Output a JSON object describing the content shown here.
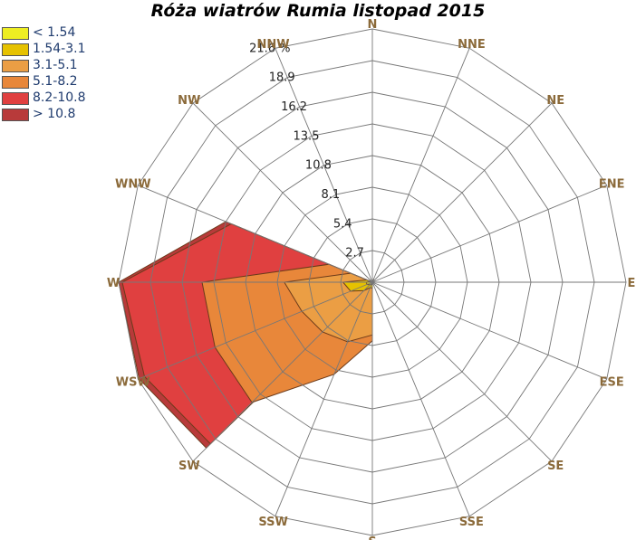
{
  "chart_data": {
    "type": "radar",
    "title": "Róża wiatrów Rumia listopad 2015",
    "directions": [
      "N",
      "NNE",
      "NE",
      "ENE",
      "E",
      "ESE",
      "SE",
      "SSE",
      "S",
      "SSW",
      "SW",
      "WSW",
      "W",
      "WNW",
      "NW",
      "NNW"
    ],
    "ring_labels": [
      "2.7",
      "5.4",
      "8.1",
      "10.8",
      "13.5",
      "16.2",
      "18.9",
      "21.6 %"
    ],
    "rmax": 21.6,
    "legend_placement": "top-left",
    "series": [
      {
        "name": "> 10.8",
        "color": "#b83a3a",
        "values": [
          0.0,
          0.0,
          0.0,
          0.0,
          0.0,
          0.0,
          0.0,
          0.0,
          0.5,
          0.5,
          20.0,
          21.5,
          21.6,
          13.5,
          0.0,
          0.0
        ]
      },
      {
        "name": "8.2-10.8",
        "color": "#e04040",
        "values": [
          0.0,
          0.0,
          0.0,
          0.0,
          1.0,
          0.0,
          0.0,
          0.0,
          0.5,
          0.5,
          19.5,
          21.0,
          21.3,
          13.0,
          0.0,
          0.0
        ]
      },
      {
        "name": "5.1-8.2",
        "color": "#e8873a",
        "values": [
          0.0,
          0.3,
          0.0,
          0.0,
          1.5,
          0.0,
          0.0,
          0.0,
          5.0,
          8.5,
          14.5,
          14.5,
          14.5,
          4.0,
          0.0,
          0.0
        ]
      },
      {
        "name": "3.1-5.1",
        "color": "#eb9e44",
        "values": [
          0.0,
          0.0,
          0.0,
          0.0,
          0.5,
          0.0,
          0.0,
          0.0,
          4.5,
          5.5,
          6.0,
          6.5,
          7.5,
          2.0,
          0.0,
          0.0
        ]
      },
      {
        "name": "1.54-3.1",
        "color": "#e6c200",
        "values": [
          0.0,
          0.0,
          0.0,
          0.0,
          0.5,
          0.0,
          0.0,
          0.0,
          0.5,
          0.5,
          1.0,
          2.0,
          2.5,
          0.5,
          0.0,
          0.0
        ]
      },
      {
        "name": "< 1.54",
        "color": "#eeee22",
        "values": [
          0.0,
          0.0,
          0.0,
          0.0,
          0.2,
          0.0,
          0.0,
          0.0,
          0.2,
          0.2,
          0.3,
          0.5,
          0.5,
          0.2,
          0.0,
          0.0
        ]
      }
    ],
    "legend": [
      {
        "label": "< 1.54",
        "color": "#eeee22"
      },
      {
        "label": "1.54-3.1",
        "color": "#e6c200"
      },
      {
        "label": "3.1-5.1",
        "color": "#eb9e44"
      },
      {
        "label": "5.1-8.2",
        "color": "#e8873a"
      },
      {
        "label": "8.2-10.8",
        "color": "#e04040"
      },
      {
        "label": "> 10.8",
        "color": "#b83a3a"
      }
    ]
  }
}
